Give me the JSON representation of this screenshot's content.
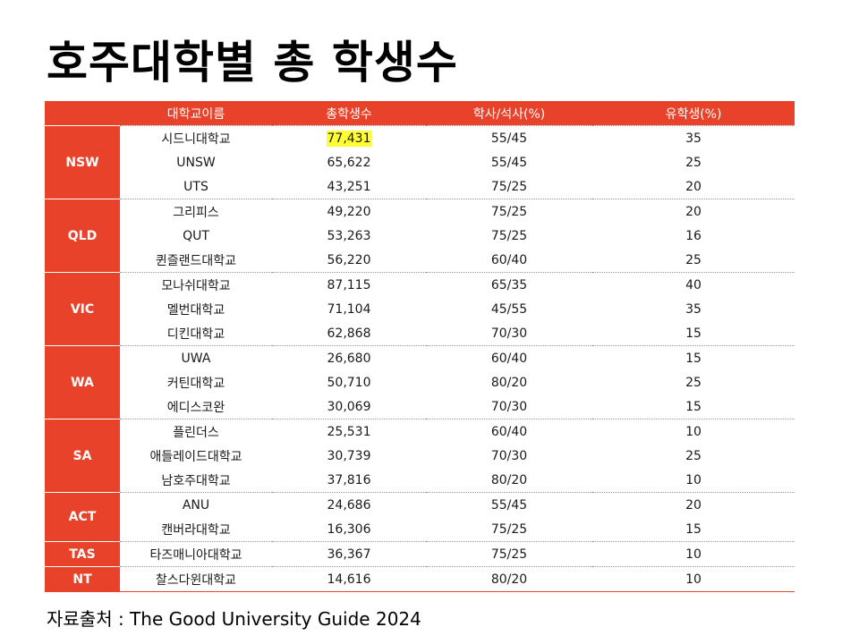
{
  "title": "호주대학별 총 학생수",
  "table": {
    "headers": [
      "",
      "대학교이름",
      "총학생수",
      "학사/석사(%)",
      "유학생(%)"
    ],
    "groups": [
      {
        "region": "NSW",
        "rows": [
          {
            "name": "시드니대학교",
            "total": "77,431",
            "ratio": "55/45",
            "intl": "35",
            "highlight": true
          },
          {
            "name": "UNSW",
            "total": "65,622",
            "ratio": "55/45",
            "intl": "25"
          },
          {
            "name": "UTS",
            "total": "43,251",
            "ratio": "75/25",
            "intl": "20"
          }
        ]
      },
      {
        "region": "QLD",
        "rows": [
          {
            "name": "그리피스",
            "total": "49,220",
            "ratio": "75/25",
            "intl": "20"
          },
          {
            "name": "QUT",
            "total": "53,263",
            "ratio": "75/25",
            "intl": "16"
          },
          {
            "name": "퀸즐랜드대학교",
            "total": "56,220",
            "ratio": "60/40",
            "intl": "25"
          }
        ]
      },
      {
        "region": "VIC",
        "rows": [
          {
            "name": "모나쉬대학교",
            "total": "87,115",
            "ratio": "65/35",
            "intl": "40"
          },
          {
            "name": "멜번대학교",
            "total": "71,104",
            "ratio": "45/55",
            "intl": "35"
          },
          {
            "name": "디킨대학교",
            "total": "62,868",
            "ratio": "70/30",
            "intl": "15"
          }
        ]
      },
      {
        "region": "WA",
        "rows": [
          {
            "name": "UWA",
            "total": "26,680",
            "ratio": "60/40",
            "intl": "15"
          },
          {
            "name": "커틴대학교",
            "total": "50,710",
            "ratio": "80/20",
            "intl": "25"
          },
          {
            "name": "에디스코완",
            "total": "30,069",
            "ratio": "70/30",
            "intl": "15"
          }
        ]
      },
      {
        "region": "SA",
        "rows": [
          {
            "name": "플린더스",
            "total": "25,531",
            "ratio": "60/40",
            "intl": "10"
          },
          {
            "name": "애들레이드대학교",
            "total": "30,739",
            "ratio": "70/30",
            "intl": "25"
          },
          {
            "name": "남호주대학교",
            "total": "37,816",
            "ratio": "80/20",
            "intl": "10"
          }
        ]
      },
      {
        "region": "ACT",
        "rows": [
          {
            "name": "ANU",
            "total": "24,686",
            "ratio": "55/45",
            "intl": "20"
          },
          {
            "name": "캔버라대학교",
            "total": "16,306",
            "ratio": "75/25",
            "intl": "15"
          }
        ]
      },
      {
        "region": "TAS",
        "rows": [
          {
            "name": "타즈매니아대학교",
            "total": "36,367",
            "ratio": "75/25",
            "intl": "10"
          }
        ]
      },
      {
        "region": "NT",
        "rows": [
          {
            "name": "찰스다윈대학교",
            "total": "14,616",
            "ratio": "80/20",
            "intl": "10"
          }
        ]
      }
    ]
  },
  "source": "자료출처 : The Good University Guide 2024",
  "colors": {
    "header_bg": "#E8432A",
    "highlight": "#FFFF33"
  }
}
